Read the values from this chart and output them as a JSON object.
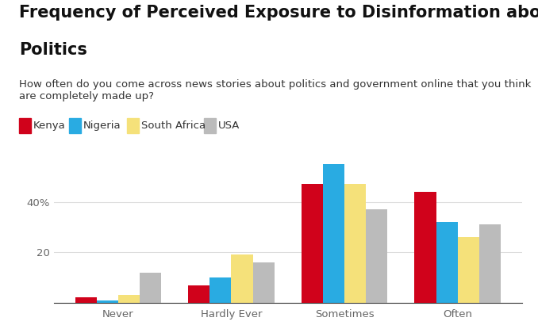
{
  "title_line1": "Frequency of Perceived Exposure to Disinformation about",
  "title_line2": "Politics",
  "subtitle": "How often do you come across news stories about politics and government online that you think\nare completely made up?",
  "categories": [
    "Never",
    "Hardly Ever",
    "Sometimes",
    "Often"
  ],
  "series": {
    "Kenya": [
      2,
      7,
      47,
      44
    ],
    "Nigeria": [
      1,
      10,
      55,
      32
    ],
    "South Africa": [
      3,
      19,
      47,
      26
    ],
    "USA": [
      12,
      16,
      37,
      31
    ]
  },
  "colors": {
    "Kenya": "#D0021B",
    "Nigeria": "#29ABE2",
    "South Africa": "#F5E17A",
    "USA": "#BBBBBB"
  },
  "ylim": [
    0,
    60
  ],
  "yticks": [
    20,
    40
  ],
  "background_color": "#FFFFFF",
  "title_fontsize": 15,
  "subtitle_fontsize": 9.5,
  "legend_fontsize": 9.5,
  "tick_fontsize": 9.5,
  "bar_width": 0.19
}
